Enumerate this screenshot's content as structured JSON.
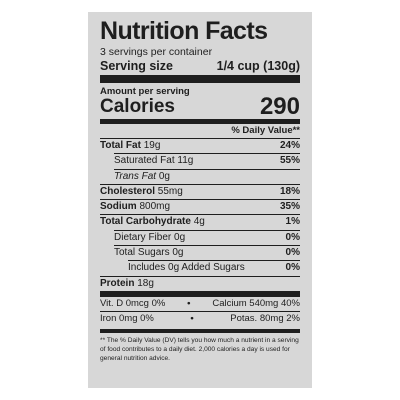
{
  "title": "Nutrition Facts",
  "servings": "3 servings per container",
  "serving_size": {
    "label": "Serving size",
    "value": "1/4 cup (130g)"
  },
  "amount_per_serving": "Amount per serving",
  "calories": {
    "label": "Calories",
    "value": "290"
  },
  "dv_header": "% Daily Value**",
  "rows": [
    {
      "label": "Total Fat",
      "amount": "19g",
      "dv": "24%"
    },
    {
      "label": "Saturated Fat",
      "amount": "11g",
      "dv": "55%"
    },
    {
      "label": "Trans Fat",
      "amount": "0g"
    },
    {
      "label": "Cholesterol",
      "amount": "55mg",
      "dv": "18%"
    },
    {
      "label": "Sodium",
      "amount": "800mg",
      "dv": "35%"
    },
    {
      "label": "Total Carbohydrate",
      "amount": "4g",
      "dv": "1%"
    },
    {
      "label": "Dietary Fiber",
      "amount": "0g",
      "dv": "0%"
    },
    {
      "label": "Total Sugars",
      "amount": "0g",
      "dv": "0%"
    },
    {
      "label": "Includes 0g Added Sugars",
      "dv": "0%"
    },
    {
      "label": "Protein",
      "amount": "18g"
    }
  ],
  "micros": [
    [
      "Vit. D 0mcg 0%",
      "Calcium 540mg 40%"
    ],
    [
      "Iron 0mg 0%",
      "Potas. 80mg 2%"
    ]
  ],
  "footnote": "** The % Daily Value (DV) tells you how much a nutrient in a serving of food contributes to a daily diet. 2,000 calories a day is used for general nutrition advice."
}
